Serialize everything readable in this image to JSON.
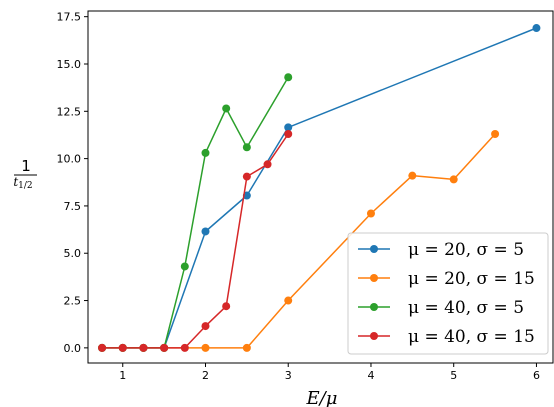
{
  "chart_data": {
    "type": "line",
    "title": "",
    "xlabel": "E/μ",
    "ylabel": {
      "numerator": "1",
      "denominator": "t",
      "subscript": "1/2"
    },
    "xlim": [
      0.58,
      6.2
    ],
    "ylim": [
      -0.8,
      17.8
    ],
    "xticks": [
      1,
      2,
      3,
      4,
      5,
      6
    ],
    "yticks": [
      0.0,
      2.5,
      5.0,
      7.5,
      10.0,
      12.5,
      15.0,
      17.5
    ],
    "ytick_labels": [
      "0.0",
      "2.5",
      "5.0",
      "7.5",
      "10.0",
      "12.5",
      "15.0",
      "17.5"
    ],
    "grid": false,
    "legend_position": "lower-right",
    "series": [
      {
        "name": "μ = 20, σ = 5",
        "color": "#1f77b4",
        "x": [
          0.75,
          1.0,
          1.25,
          1.5,
          2.0,
          2.5,
          3.0,
          6.0
        ],
        "y": [
          0.0,
          0.0,
          0.0,
          0.0,
          6.15,
          8.05,
          11.65,
          16.9
        ]
      },
      {
        "name": "μ = 20, σ = 15",
        "color": "#ff7f0e",
        "x": [
          0.75,
          1.0,
          1.25,
          1.5,
          2.0,
          2.5,
          3.0,
          4.0,
          4.5,
          5.0,
          5.5
        ],
        "y": [
          0.0,
          0.0,
          0.0,
          0.0,
          0.0,
          0.0,
          2.5,
          7.1,
          9.1,
          8.9,
          11.3
        ]
      },
      {
        "name": "μ = 40, σ = 5",
        "color": "#2ca02c",
        "x": [
          0.75,
          1.0,
          1.25,
          1.5,
          1.75,
          2.0,
          2.25,
          2.5,
          3.0
        ],
        "y": [
          0.0,
          0.0,
          0.0,
          0.0,
          4.3,
          10.3,
          12.65,
          10.6,
          14.3
        ]
      },
      {
        "name": "μ = 40, σ = 15",
        "color": "#d62728",
        "x": [
          0.75,
          1.0,
          1.25,
          1.5,
          1.75,
          2.0,
          2.25,
          2.5,
          2.75,
          3.0
        ],
        "y": [
          0.0,
          0.0,
          0.0,
          0.0,
          0.0,
          1.15,
          2.2,
          9.05,
          9.7,
          11.3
        ]
      }
    ]
  }
}
